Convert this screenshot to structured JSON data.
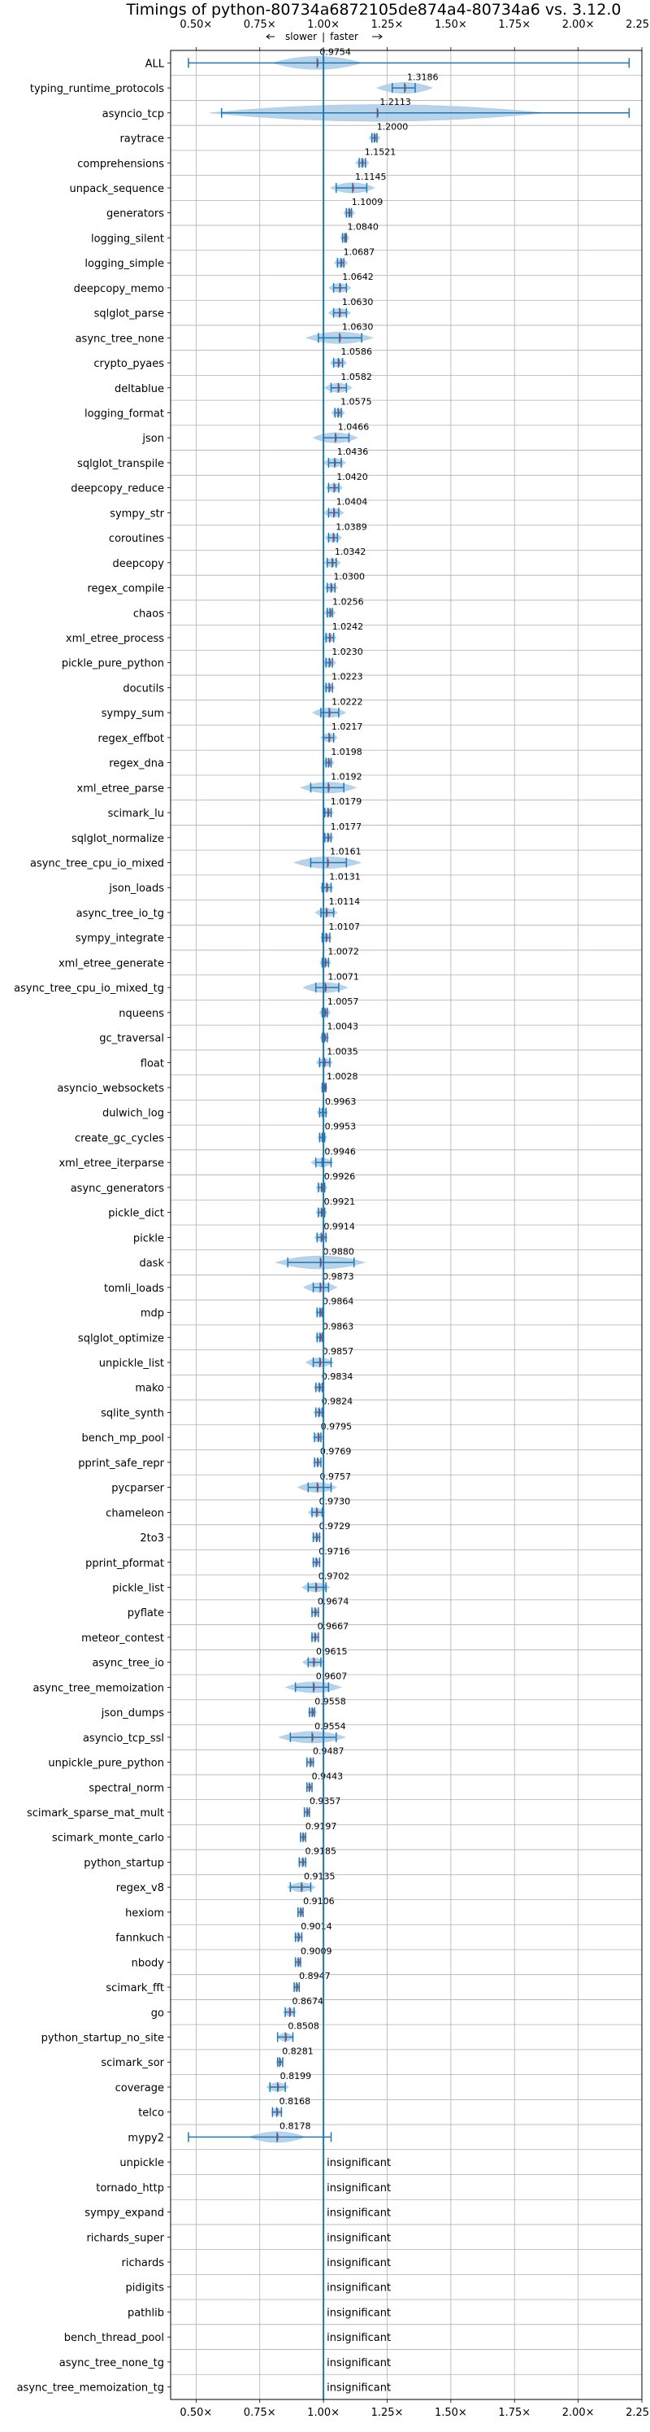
{
  "chart_data": {
    "type": "violin",
    "title": "Timings of python-80734a6872105de874a4-80734a6 vs. 3.12.0",
    "direction_annotation": {
      "slower": "slower",
      "faster": "faster"
    },
    "xlim": [
      0.4,
      2.25
    ],
    "xticks": [
      0.5,
      0.75,
      1.0,
      1.25,
      1.5,
      1.75,
      2.0,
      2.25
    ],
    "xtick_labels": [
      "0.50×",
      "0.75×",
      "1.00×",
      "1.25×",
      "1.50×",
      "1.75×",
      "2.00×",
      "2.25×"
    ],
    "reference_line": 1.0,
    "grid": true,
    "insignificant_label": "insignificant",
    "colors": {
      "violin": "#a9cbe6",
      "accent": "#1f77b4",
      "median": "#d62728",
      "grid": "#b0b0b0"
    },
    "benchmarks": [
      {
        "name": "ALL",
        "value": 0.9754,
        "whisker": [
          0.47,
          2.2
        ],
        "spread": 0.08,
        "significant": true
      },
      {
        "name": "typing_runtime_protocols",
        "value": 1.3186,
        "whisker": [
          1.27,
          1.36
        ],
        "spread": 0.05,
        "significant": true
      },
      {
        "name": "asyncio_tcp",
        "value": 1.2113,
        "whisker": [
          0.6,
          2.2
        ],
        "spread": 0.3,
        "significant": true
      },
      {
        "name": "raytrace",
        "value": 1.2,
        "whisker": [
          1.19,
          1.21
        ],
        "spread": 0.01,
        "significant": true
      },
      {
        "name": "comprehensions",
        "value": 1.1521,
        "whisker": [
          1.14,
          1.165
        ],
        "spread": 0.012,
        "significant": true
      },
      {
        "name": "unpack_sequence",
        "value": 1.1145,
        "whisker": [
          1.05,
          1.17
        ],
        "spread": 0.04,
        "significant": true
      },
      {
        "name": "generators",
        "value": 1.1009,
        "whisker": [
          1.09,
          1.11
        ],
        "spread": 0.01,
        "significant": true
      },
      {
        "name": "logging_silent",
        "value": 1.084,
        "whisker": [
          1.075,
          1.09
        ],
        "spread": 0.008,
        "significant": true
      },
      {
        "name": "logging_simple",
        "value": 1.0687,
        "whisker": [
          1.055,
          1.08
        ],
        "spread": 0.012,
        "significant": true
      },
      {
        "name": "deepcopy_memo",
        "value": 1.0642,
        "whisker": [
          1.04,
          1.09
        ],
        "spread": 0.02,
        "significant": true
      },
      {
        "name": "sqlglot_parse",
        "value": 1.063,
        "whisker": [
          1.04,
          1.09
        ],
        "spread": 0.02,
        "significant": true
      },
      {
        "name": "async_tree_none",
        "value": 1.063,
        "whisker": [
          0.98,
          1.15
        ],
        "spread": 0.06,
        "significant": true
      },
      {
        "name": "crypto_pyaes",
        "value": 1.0586,
        "whisker": [
          1.04,
          1.075
        ],
        "spread": 0.015,
        "significant": true
      },
      {
        "name": "deltablue",
        "value": 1.0582,
        "whisker": [
          1.03,
          1.09
        ],
        "spread": 0.025,
        "significant": true
      },
      {
        "name": "logging_format",
        "value": 1.0575,
        "whisker": [
          1.045,
          1.07
        ],
        "spread": 0.012,
        "significant": true
      },
      {
        "name": "json",
        "value": 1.0466,
        "whisker": [
          1.0,
          1.1
        ],
        "spread": 0.04,
        "significant": true
      },
      {
        "name": "sqlglot_transpile",
        "value": 1.0436,
        "whisker": [
          1.02,
          1.07
        ],
        "spread": 0.02,
        "significant": true
      },
      {
        "name": "deepcopy_reduce",
        "value": 1.042,
        "whisker": [
          1.02,
          1.06
        ],
        "spread": 0.015,
        "significant": true
      },
      {
        "name": "sympy_str",
        "value": 1.0404,
        "whisker": [
          1.02,
          1.06
        ],
        "spread": 0.018,
        "significant": true
      },
      {
        "name": "coroutines",
        "value": 1.0389,
        "whisker": [
          1.02,
          1.055
        ],
        "spread": 0.015,
        "significant": true
      },
      {
        "name": "deepcopy",
        "value": 1.0342,
        "whisker": [
          1.015,
          1.05
        ],
        "spread": 0.015,
        "significant": true
      },
      {
        "name": "regex_compile",
        "value": 1.03,
        "whisker": [
          1.015,
          1.045
        ],
        "spread": 0.012,
        "significant": true
      },
      {
        "name": "chaos",
        "value": 1.0256,
        "whisker": [
          1.015,
          1.035
        ],
        "spread": 0.01,
        "significant": true
      },
      {
        "name": "xml_etree_process",
        "value": 1.0242,
        "whisker": [
          1.01,
          1.04
        ],
        "spread": 0.012,
        "significant": true
      },
      {
        "name": "pickle_pure_python",
        "value": 1.023,
        "whisker": [
          1.01,
          1.035
        ],
        "spread": 0.012,
        "significant": true
      },
      {
        "name": "docutils",
        "value": 1.0223,
        "whisker": [
          1.01,
          1.035
        ],
        "spread": 0.01,
        "significant": true
      },
      {
        "name": "sympy_sum",
        "value": 1.0222,
        "whisker": [
          0.99,
          1.06
        ],
        "spread": 0.03,
        "significant": true
      },
      {
        "name": "regex_effbot",
        "value": 1.0217,
        "whisker": [
          1.0,
          1.04
        ],
        "spread": 0.015,
        "significant": true
      },
      {
        "name": "regex_dna",
        "value": 1.0198,
        "whisker": [
          1.01,
          1.03
        ],
        "spread": 0.01,
        "significant": true
      },
      {
        "name": "xml_etree_parse",
        "value": 1.0192,
        "whisker": [
          0.95,
          1.08
        ],
        "spread": 0.05,
        "significant": true
      },
      {
        "name": "scimark_lu",
        "value": 1.0179,
        "whisker": [
          1.005,
          1.03
        ],
        "spread": 0.01,
        "significant": true
      },
      {
        "name": "sqlglot_normalize",
        "value": 1.0177,
        "whisker": [
          1.005,
          1.03
        ],
        "spread": 0.01,
        "significant": true
      },
      {
        "name": "async_tree_cpu_io_mixed",
        "value": 1.0161,
        "whisker": [
          0.95,
          1.09
        ],
        "spread": 0.06,
        "significant": true
      },
      {
        "name": "json_loads",
        "value": 1.0131,
        "whisker": [
          0.995,
          1.03
        ],
        "spread": 0.012,
        "significant": true
      },
      {
        "name": "async_tree_io_tg",
        "value": 1.0114,
        "whisker": [
          0.99,
          1.04
        ],
        "spread": 0.02,
        "significant": true
      },
      {
        "name": "sympy_integrate",
        "value": 1.0107,
        "whisker": [
          0.995,
          1.025
        ],
        "spread": 0.01,
        "significant": true
      },
      {
        "name": "xml_etree_generate",
        "value": 1.0072,
        "whisker": [
          0.995,
          1.02
        ],
        "spread": 0.01,
        "significant": true
      },
      {
        "name": "async_tree_cpu_io_mixed_tg",
        "value": 1.0071,
        "whisker": [
          0.97,
          1.06
        ],
        "spread": 0.04,
        "significant": true
      },
      {
        "name": "nqueens",
        "value": 1.0057,
        "whisker": [
          0.995,
          1.015
        ],
        "spread": 0.01,
        "significant": true
      },
      {
        "name": "gc_traversal",
        "value": 1.0043,
        "whisker": [
          0.995,
          1.015
        ],
        "spread": 0.008,
        "significant": true
      },
      {
        "name": "float",
        "value": 1.0035,
        "whisker": [
          0.985,
          1.025
        ],
        "spread": 0.015,
        "significant": true
      },
      {
        "name": "asyncio_websockets",
        "value": 1.0028,
        "whisker": [
          0.995,
          1.01
        ],
        "spread": 0.006,
        "significant": true
      },
      {
        "name": "dulwich_log",
        "value": 0.9963,
        "whisker": [
          0.985,
          1.01
        ],
        "spread": 0.01,
        "significant": true
      },
      {
        "name": "create_gc_cycles",
        "value": 0.9953,
        "whisker": [
          0.985,
          1.005
        ],
        "spread": 0.008,
        "significant": true
      },
      {
        "name": "xml_etree_iterparse",
        "value": 0.9946,
        "whisker": [
          0.97,
          1.03
        ],
        "spread": 0.02,
        "significant": true
      },
      {
        "name": "async_generators",
        "value": 0.9926,
        "whisker": [
          0.98,
          1.005
        ],
        "spread": 0.01,
        "significant": true
      },
      {
        "name": "pickle_dict",
        "value": 0.9921,
        "whisker": [
          0.98,
          1.005
        ],
        "spread": 0.01,
        "significant": true
      },
      {
        "name": "pickle",
        "value": 0.9914,
        "whisker": [
          0.975,
          1.01
        ],
        "spread": 0.012,
        "significant": true
      },
      {
        "name": "dask",
        "value": 0.988,
        "whisker": [
          0.86,
          1.12
        ],
        "spread": 0.08,
        "significant": true
      },
      {
        "name": "tomli_loads",
        "value": 0.9873,
        "whisker": [
          0.96,
          1.02
        ],
        "spread": 0.03,
        "significant": true
      },
      {
        "name": "mdp",
        "value": 0.9864,
        "whisker": [
          0.975,
          0.995
        ],
        "spread": 0.008,
        "significant": true
      },
      {
        "name": "sqlglot_optimize",
        "value": 0.9863,
        "whisker": [
          0.975,
          0.995
        ],
        "spread": 0.008,
        "significant": true
      },
      {
        "name": "unpickle_list",
        "value": 0.9857,
        "whisker": [
          0.96,
          1.03
        ],
        "spread": 0.025,
        "significant": true
      },
      {
        "name": "mako",
        "value": 0.9834,
        "whisker": [
          0.97,
          0.995
        ],
        "spread": 0.01,
        "significant": true
      },
      {
        "name": "sqlite_synth",
        "value": 0.9824,
        "whisker": [
          0.97,
          0.995
        ],
        "spread": 0.01,
        "significant": true
      },
      {
        "name": "bench_mp_pool",
        "value": 0.9795,
        "whisker": [
          0.965,
          0.99
        ],
        "spread": 0.01,
        "significant": true
      },
      {
        "name": "pprint_safe_repr",
        "value": 0.9769,
        "whisker": [
          0.965,
          0.99
        ],
        "spread": 0.008,
        "significant": true
      },
      {
        "name": "pycparser",
        "value": 0.9757,
        "whisker": [
          0.94,
          1.03
        ],
        "spread": 0.035,
        "significant": true
      },
      {
        "name": "chameleon",
        "value": 0.973,
        "whisker": [
          0.955,
          0.995
        ],
        "spread": 0.015,
        "significant": true
      },
      {
        "name": "2to3",
        "value": 0.9729,
        "whisker": [
          0.96,
          0.985
        ],
        "spread": 0.008,
        "significant": true
      },
      {
        "name": "pprint_pformat",
        "value": 0.9716,
        "whisker": [
          0.96,
          0.985
        ],
        "spread": 0.008,
        "significant": true
      },
      {
        "name": "pickle_list",
        "value": 0.9702,
        "whisker": [
          0.94,
          1.01
        ],
        "spread": 0.025,
        "significant": true
      },
      {
        "name": "pyflate",
        "value": 0.9674,
        "whisker": [
          0.955,
          0.98
        ],
        "spread": 0.008,
        "significant": true
      },
      {
        "name": "meteor_contest",
        "value": 0.9667,
        "whisker": [
          0.955,
          0.98
        ],
        "spread": 0.008,
        "significant": true
      },
      {
        "name": "async_tree_io",
        "value": 0.9615,
        "whisker": [
          0.94,
          0.99
        ],
        "spread": 0.02,
        "significant": true
      },
      {
        "name": "async_tree_memoization",
        "value": 0.9607,
        "whisker": [
          0.89,
          1.02
        ],
        "spread": 0.05,
        "significant": true
      },
      {
        "name": "json_dumps",
        "value": 0.9558,
        "whisker": [
          0.945,
          0.965
        ],
        "spread": 0.008,
        "significant": true
      },
      {
        "name": "asyncio_tcp_ssl",
        "value": 0.9554,
        "whisker": [
          0.87,
          1.05
        ],
        "spread": 0.06,
        "significant": true
      },
      {
        "name": "unpickle_pure_python",
        "value": 0.9487,
        "whisker": [
          0.935,
          0.96
        ],
        "spread": 0.008,
        "significant": true
      },
      {
        "name": "spectral_norm",
        "value": 0.9443,
        "whisker": [
          0.935,
          0.955
        ],
        "spread": 0.006,
        "significant": true
      },
      {
        "name": "scimark_sparse_mat_mult",
        "value": 0.9357,
        "whisker": [
          0.925,
          0.945
        ],
        "spread": 0.006,
        "significant": true
      },
      {
        "name": "scimark_monte_carlo",
        "value": 0.9197,
        "whisker": [
          0.91,
          0.93
        ],
        "spread": 0.006,
        "significant": true
      },
      {
        "name": "python_startup",
        "value": 0.9185,
        "whisker": [
          0.905,
          0.93
        ],
        "spread": 0.008,
        "significant": true
      },
      {
        "name": "regex_v8",
        "value": 0.9135,
        "whisker": [
          0.87,
          0.95
        ],
        "spread": 0.025,
        "significant": true
      },
      {
        "name": "hexiom",
        "value": 0.9106,
        "whisker": [
          0.9,
          0.92
        ],
        "spread": 0.006,
        "significant": true
      },
      {
        "name": "fannkuch",
        "value": 0.9014,
        "whisker": [
          0.89,
          0.915
        ],
        "spread": 0.008,
        "significant": true
      },
      {
        "name": "nbody",
        "value": 0.9009,
        "whisker": [
          0.89,
          0.91
        ],
        "spread": 0.006,
        "significant": true
      },
      {
        "name": "scimark_fft",
        "value": 0.8947,
        "whisker": [
          0.885,
          0.905
        ],
        "spread": 0.006,
        "significant": true
      },
      {
        "name": "go",
        "value": 0.8674,
        "whisker": [
          0.85,
          0.885
        ],
        "spread": 0.012,
        "significant": true
      },
      {
        "name": "python_startup_no_site",
        "value": 0.8508,
        "whisker": [
          0.82,
          0.88
        ],
        "spread": 0.015,
        "significant": true
      },
      {
        "name": "scimark_sor",
        "value": 0.8281,
        "whisker": [
          0.82,
          0.84
        ],
        "spread": 0.006,
        "significant": true
      },
      {
        "name": "coverage",
        "value": 0.8199,
        "whisker": [
          0.79,
          0.85
        ],
        "spread": 0.02,
        "significant": true
      },
      {
        "name": "telco",
        "value": 0.8168,
        "whisker": [
          0.8,
          0.835
        ],
        "spread": 0.01,
        "significant": true
      },
      {
        "name": "mypy2",
        "value": 0.8178,
        "whisker": [
          0.47,
          1.03
        ],
        "spread": 0.05,
        "significant": true
      },
      {
        "name": "unpickle",
        "value": null,
        "significant": false
      },
      {
        "name": "tornado_http",
        "value": null,
        "significant": false
      },
      {
        "name": "sympy_expand",
        "value": null,
        "significant": false
      },
      {
        "name": "richards_super",
        "value": null,
        "significant": false
      },
      {
        "name": "richards",
        "value": null,
        "significant": false
      },
      {
        "name": "pidigits",
        "value": null,
        "significant": false
      },
      {
        "name": "pathlib",
        "value": null,
        "significant": false
      },
      {
        "name": "bench_thread_pool",
        "value": null,
        "significant": false
      },
      {
        "name": "async_tree_none_tg",
        "value": null,
        "significant": false
      },
      {
        "name": "async_tree_memoization_tg",
        "value": null,
        "significant": false
      }
    ]
  }
}
